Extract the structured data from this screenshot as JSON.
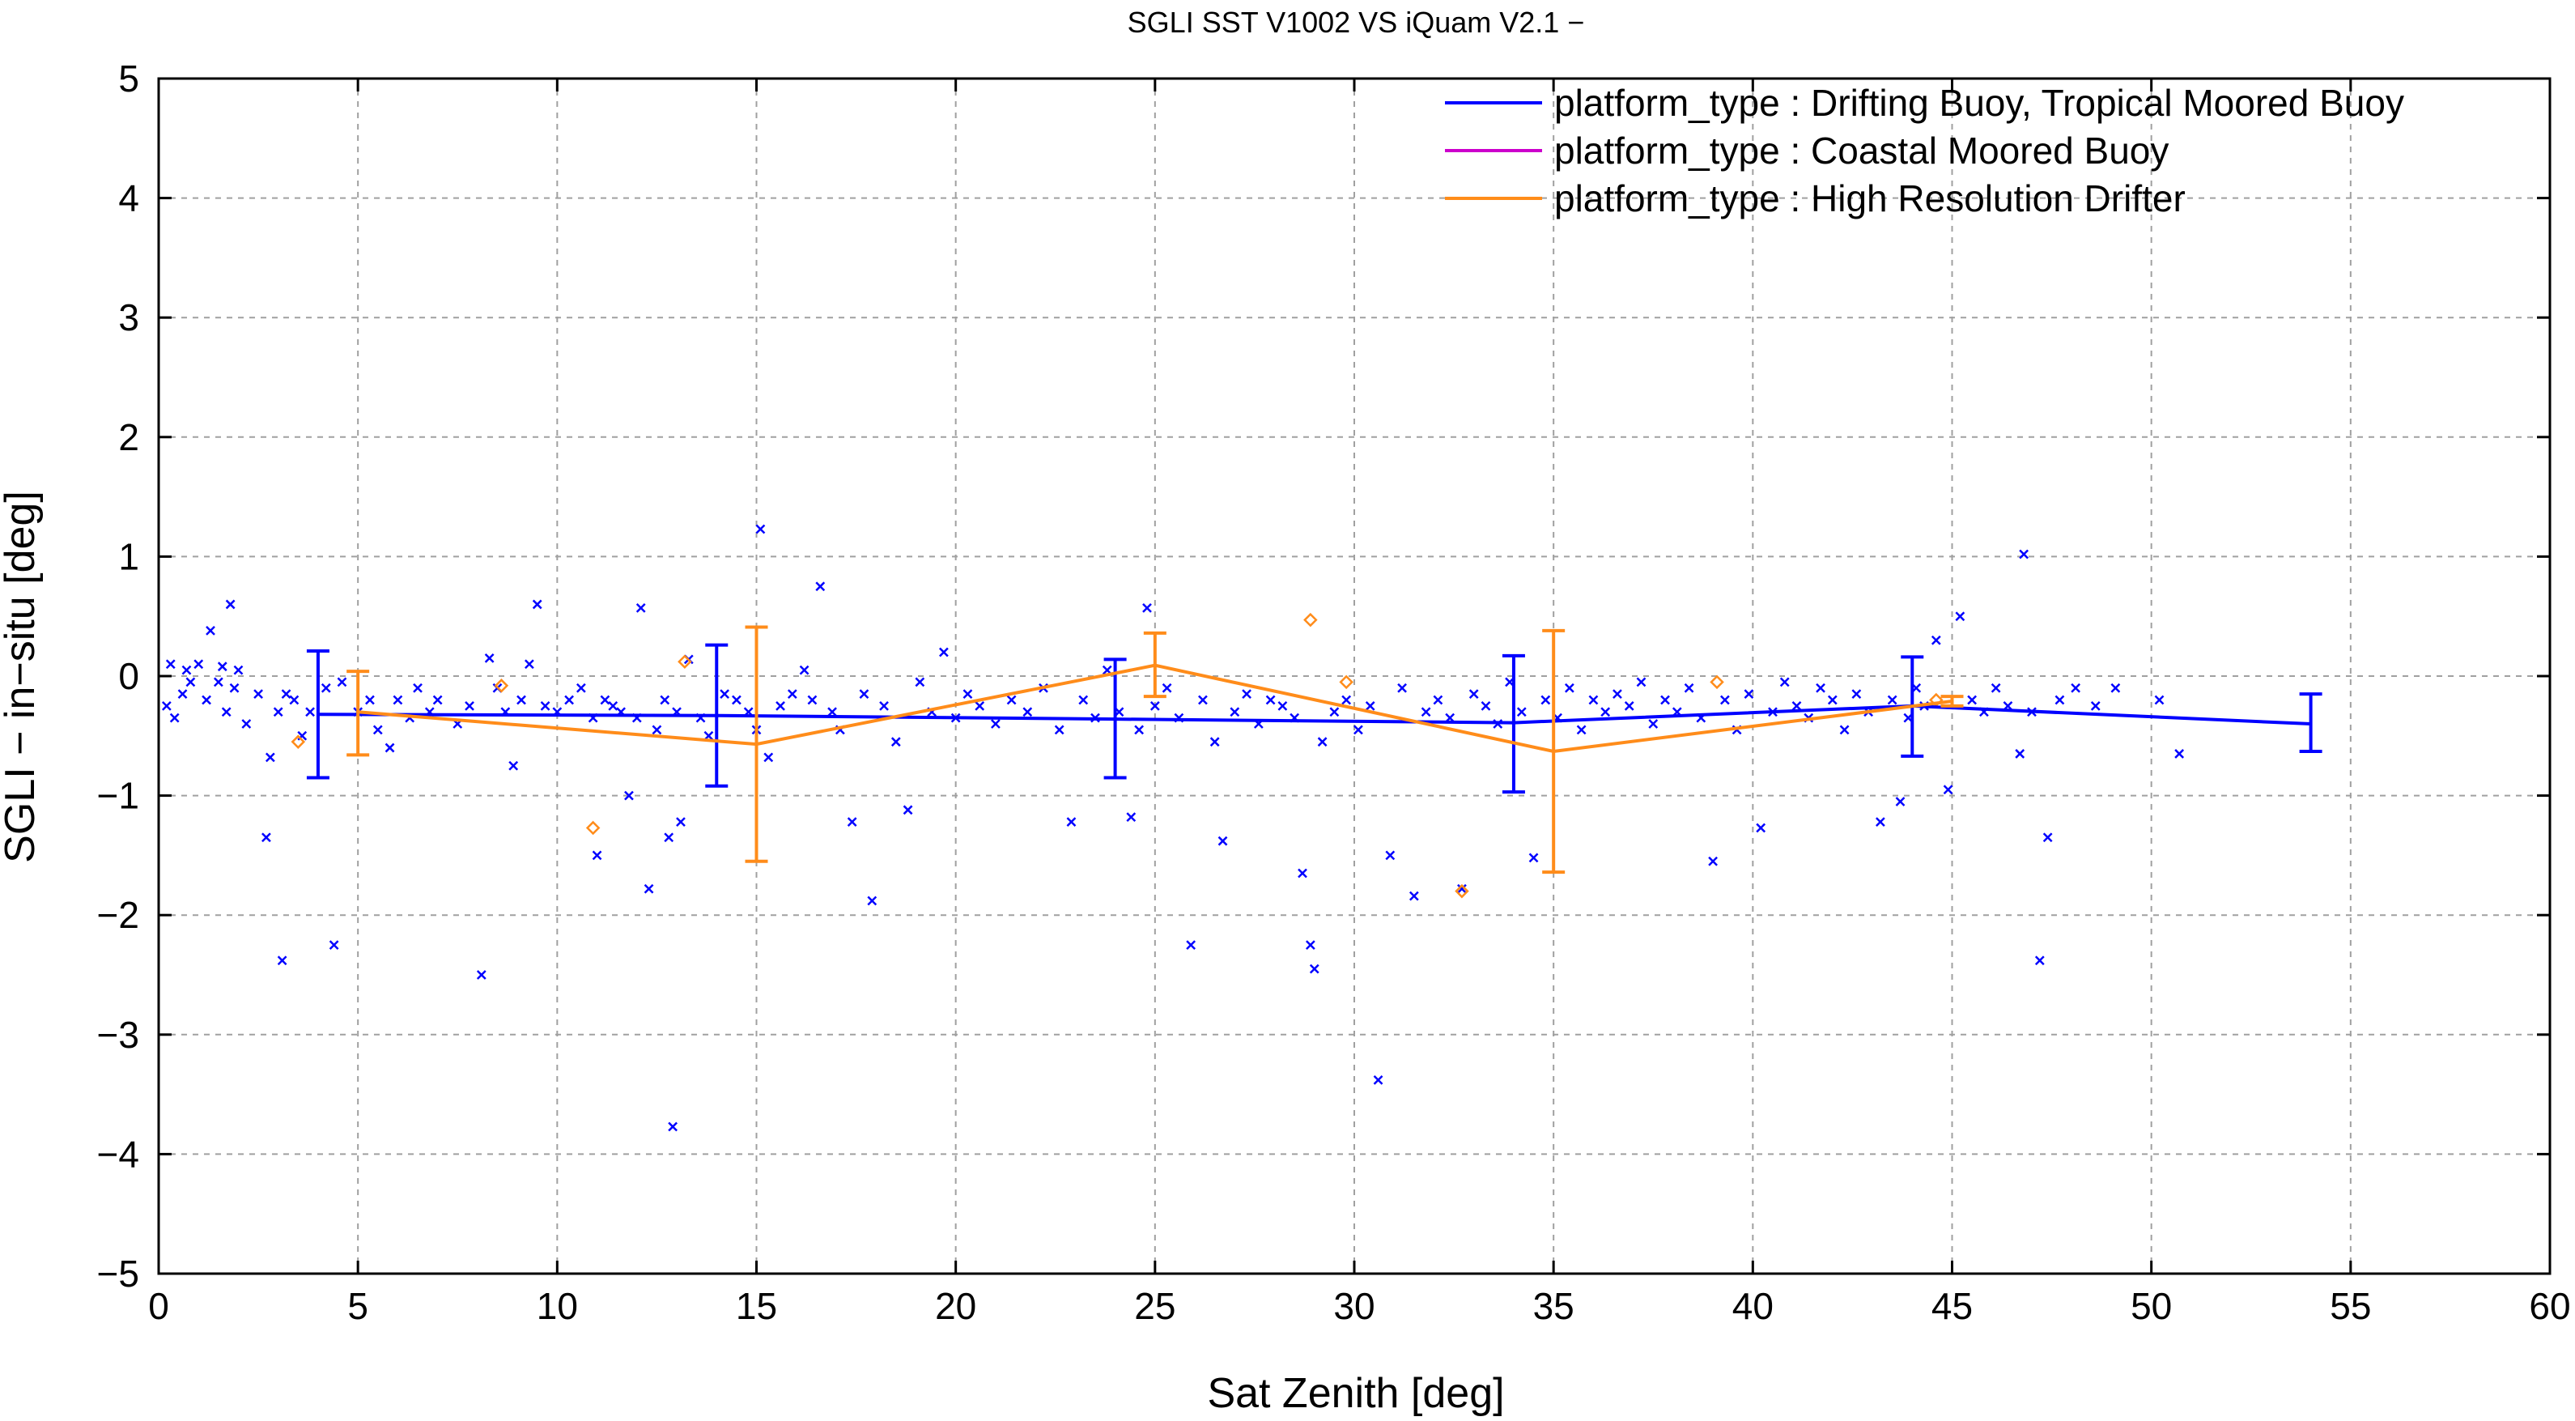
{
  "chart_data": {
    "type": "line",
    "title": "SGLI SST V1002 VS iQuam V2.1  −",
    "xlabel": "Sat Zenith [deg]",
    "ylabel": "SGLI − in−situ [deg]",
    "xlim": [
      0,
      60
    ],
    "ylim": [
      -5,
      5
    ],
    "x_ticks": [
      0,
      5,
      10,
      15,
      20,
      25,
      30,
      35,
      40,
      45,
      50,
      55,
      60
    ],
    "y_ticks": [
      -5,
      -4,
      -3,
      -2,
      -1,
      0,
      1,
      2,
      3,
      4,
      5
    ],
    "grid": true,
    "legend_position": "top-right",
    "series": [
      {
        "name": "platform_type : Drifting Buoy, Tropical Moored Buoy",
        "color": "#0000ff",
        "x": [
          4,
          14,
          24,
          34,
          44,
          54
        ],
        "mean": [
          -0.32,
          -0.33,
          -0.36,
          -0.39,
          -0.25,
          -0.4
        ],
        "err_low": [
          -0.85,
          -0.92,
          -0.85,
          -0.97,
          -0.67,
          -0.63
        ],
        "err_high": [
          0.21,
          0.26,
          0.14,
          0.17,
          0.16,
          -0.15
        ]
      },
      {
        "name": "platform_type : Coastal Moored Buoy",
        "color": "#cc00cc",
        "x": [],
        "mean": [],
        "err_low": [],
        "err_high": []
      },
      {
        "name": "platform_type : High Resolution Drifter",
        "color": "#ff8c1a",
        "x": [
          5,
          15,
          25,
          35,
          45
        ],
        "mean": [
          -0.3,
          -0.57,
          0.09,
          -0.63,
          -0.21
        ],
        "err_low": [
          -0.66,
          -1.55,
          -0.17,
          -1.64,
          -0.25
        ],
        "err_high": [
          0.04,
          0.41,
          0.36,
          0.38,
          -0.17
        ]
      }
    ],
    "scatter_blue": [
      [
        0.2,
        -0.25
      ],
      [
        0.3,
        0.1
      ],
      [
        0.4,
        -0.35
      ],
      [
        0.6,
        -0.15
      ],
      [
        0.7,
        0.05
      ],
      [
        0.8,
        -0.05
      ],
      [
        1.0,
        0.1
      ],
      [
        1.2,
        -0.2
      ],
      [
        1.3,
        0.38
      ],
      [
        1.5,
        -0.05
      ],
      [
        1.6,
        0.08
      ],
      [
        1.7,
        -0.3
      ],
      [
        1.8,
        0.6
      ],
      [
        1.9,
        -0.1
      ],
      [
        2.0,
        0.05
      ],
      [
        2.2,
        -0.4
      ],
      [
        2.5,
        -0.15
      ],
      [
        2.7,
        -1.35
      ],
      [
        2.8,
        -0.68
      ],
      [
        3.0,
        -0.3
      ],
      [
        3.1,
        -2.38
      ],
      [
        3.2,
        -0.15
      ],
      [
        3.4,
        -0.2
      ],
      [
        3.6,
        -0.5
      ],
      [
        3.8,
        -0.3
      ],
      [
        4.2,
        -0.1
      ],
      [
        4.4,
        -2.25
      ],
      [
        4.6,
        -0.05
      ],
      [
        5.0,
        -0.3
      ],
      [
        5.3,
        -0.2
      ],
      [
        5.5,
        -0.45
      ],
      [
        5.8,
        -0.6
      ],
      [
        6.0,
        -0.2
      ],
      [
        6.3,
        -0.35
      ],
      [
        6.5,
        -0.1
      ],
      [
        6.8,
        -0.3
      ],
      [
        7.0,
        -0.2
      ],
      [
        7.5,
        -0.4
      ],
      [
        7.8,
        -0.25
      ],
      [
        8.1,
        -2.5
      ],
      [
        8.3,
        0.15
      ],
      [
        8.5,
        -0.1
      ],
      [
        8.7,
        -0.3
      ],
      [
        8.9,
        -0.75
      ],
      [
        9.1,
        -0.2
      ],
      [
        9.3,
        0.1
      ],
      [
        9.5,
        0.6
      ],
      [
        9.7,
        -0.25
      ],
      [
        10.0,
        -0.3
      ],
      [
        10.3,
        -0.2
      ],
      [
        10.6,
        -0.1
      ],
      [
        10.9,
        -0.35
      ],
      [
        11.0,
        -1.5
      ],
      [
        11.2,
        -0.2
      ],
      [
        11.4,
        -0.25
      ],
      [
        11.6,
        -0.3
      ],
      [
        11.8,
        -1.0
      ],
      [
        12.0,
        -0.35
      ],
      [
        12.1,
        0.57
      ],
      [
        12.3,
        -1.78
      ],
      [
        12.5,
        -0.45
      ],
      [
        12.7,
        -0.2
      ],
      [
        12.8,
        -1.35
      ],
      [
        12.9,
        -3.77
      ],
      [
        13.0,
        -0.3
      ],
      [
        13.1,
        -1.22
      ],
      [
        13.3,
        0.14
      ],
      [
        13.6,
        -0.35
      ],
      [
        13.8,
        -0.5
      ],
      [
        14.2,
        -0.15
      ],
      [
        14.5,
        -0.2
      ],
      [
        14.8,
        -0.3
      ],
      [
        15.0,
        -0.45
      ],
      [
        15.1,
        1.23
      ],
      [
        15.3,
        -0.68
      ],
      [
        15.6,
        -0.25
      ],
      [
        15.9,
        -0.15
      ],
      [
        16.2,
        0.05
      ],
      [
        16.4,
        -0.2
      ],
      [
        16.6,
        0.75
      ],
      [
        16.9,
        -0.3
      ],
      [
        17.1,
        -0.45
      ],
      [
        17.4,
        -1.22
      ],
      [
        17.7,
        -0.15
      ],
      [
        17.9,
        -1.88
      ],
      [
        18.2,
        -0.25
      ],
      [
        18.5,
        -0.55
      ],
      [
        18.8,
        -1.12
      ],
      [
        19.1,
        -0.05
      ],
      [
        19.4,
        -0.3
      ],
      [
        19.7,
        0.2
      ],
      [
        20.0,
        -0.35
      ],
      [
        20.3,
        -0.15
      ],
      [
        20.6,
        -0.25
      ],
      [
        21.0,
        -0.4
      ],
      [
        21.4,
        -0.2
      ],
      [
        21.8,
        -0.3
      ],
      [
        22.2,
        -0.1
      ],
      [
        22.6,
        -0.45
      ],
      [
        22.9,
        -1.22
      ],
      [
        23.2,
        -0.2
      ],
      [
        23.5,
        -0.35
      ],
      [
        23.8,
        0.05
      ],
      [
        24.1,
        -0.3
      ],
      [
        24.4,
        -1.18
      ],
      [
        24.6,
        -0.45
      ],
      [
        24.8,
        0.57
      ],
      [
        25.0,
        -0.25
      ],
      [
        25.3,
        -0.1
      ],
      [
        25.6,
        -0.35
      ],
      [
        25.9,
        -2.25
      ],
      [
        26.2,
        -0.2
      ],
      [
        26.5,
        -0.55
      ],
      [
        26.7,
        -1.38
      ],
      [
        27.0,
        -0.3
      ],
      [
        27.3,
        -0.15
      ],
      [
        27.6,
        -0.4
      ],
      [
        27.9,
        -0.2
      ],
      [
        28.2,
        -0.25
      ],
      [
        28.5,
        -0.35
      ],
      [
        28.7,
        -1.65
      ],
      [
        28.9,
        -2.25
      ],
      [
        29.0,
        -2.45
      ],
      [
        29.2,
        -0.55
      ],
      [
        29.5,
        -0.3
      ],
      [
        29.8,
        -0.2
      ],
      [
        30.1,
        -0.45
      ],
      [
        30.4,
        -0.25
      ],
      [
        30.6,
        -3.38
      ],
      [
        30.9,
        -1.5
      ],
      [
        31.2,
        -0.1
      ],
      [
        31.5,
        -1.84
      ],
      [
        31.8,
        -0.3
      ],
      [
        32.1,
        -0.2
      ],
      [
        32.4,
        -0.35
      ],
      [
        32.7,
        -1.78
      ],
      [
        33.0,
        -0.15
      ],
      [
        33.3,
        -0.25
      ],
      [
        33.6,
        -0.4
      ],
      [
        33.9,
        -0.05
      ],
      [
        34.2,
        -0.3
      ],
      [
        34.5,
        -1.52
      ],
      [
        34.8,
        -0.2
      ],
      [
        35.1,
        -0.35
      ],
      [
        35.4,
        -0.1
      ],
      [
        35.7,
        -0.45
      ],
      [
        36.0,
        -0.2
      ],
      [
        36.3,
        -0.3
      ],
      [
        36.6,
        -0.15
      ],
      [
        36.9,
        -0.25
      ],
      [
        37.2,
        -0.05
      ],
      [
        37.5,
        -0.4
      ],
      [
        37.8,
        -0.2
      ],
      [
        38.1,
        -0.3
      ],
      [
        38.4,
        -0.1
      ],
      [
        38.7,
        -0.35
      ],
      [
        39.0,
        -1.55
      ],
      [
        39.3,
        -0.2
      ],
      [
        39.6,
        -0.45
      ],
      [
        39.9,
        -0.15
      ],
      [
        40.2,
        -1.27
      ],
      [
        40.5,
        -0.3
      ],
      [
        40.8,
        -0.05
      ],
      [
        41.1,
        -0.25
      ],
      [
        41.4,
        -0.35
      ],
      [
        41.7,
        -0.1
      ],
      [
        42.0,
        -0.2
      ],
      [
        42.3,
        -0.45
      ],
      [
        42.6,
        -0.15
      ],
      [
        42.9,
        -0.3
      ],
      [
        43.2,
        -1.22
      ],
      [
        43.5,
        -0.2
      ],
      [
        43.7,
        -1.05
      ],
      [
        43.9,
        -0.35
      ],
      [
        44.1,
        -0.1
      ],
      [
        44.3,
        -0.25
      ],
      [
        44.6,
        0.3
      ],
      [
        44.9,
        -0.95
      ],
      [
        45.2,
        0.5
      ],
      [
        45.5,
        -0.2
      ],
      [
        45.8,
        -0.3
      ],
      [
        46.1,
        -0.1
      ],
      [
        46.4,
        -0.25
      ],
      [
        46.7,
        -0.65
      ],
      [
        46.8,
        1.02
      ],
      [
        47.0,
        -0.3
      ],
      [
        47.2,
        -2.38
      ],
      [
        47.4,
        -1.35
      ],
      [
        47.7,
        -0.2
      ],
      [
        48.1,
        -0.1
      ],
      [
        48.6,
        -0.25
      ],
      [
        49.1,
        -0.1
      ],
      [
        50.2,
        -0.2
      ],
      [
        50.7,
        -0.65
      ]
    ],
    "scatter_orange": [
      [
        3.5,
        -0.55
      ],
      [
        8.6,
        -0.08
      ],
      [
        10.9,
        -1.27
      ],
      [
        13.2,
        0.12
      ],
      [
        28.9,
        0.47
      ],
      [
        29.8,
        -0.05
      ],
      [
        32.7,
        -1.8
      ],
      [
        39.1,
        -0.05
      ],
      [
        44.6,
        -0.2
      ]
    ]
  }
}
